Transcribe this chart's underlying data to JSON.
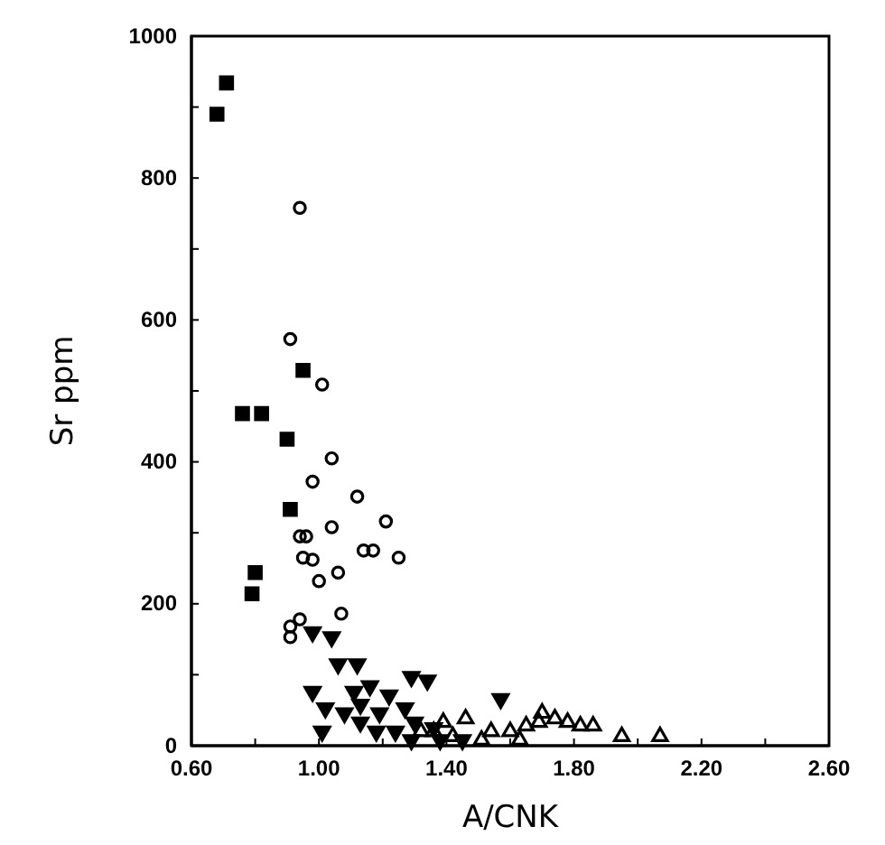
{
  "chart_data": {
    "type": "scatter",
    "xlabel": "A/CNK",
    "ylabel": "Sr ppm",
    "xlim": [
      0.6,
      2.6
    ],
    "xticks": [
      {
        "value": 0.6,
        "label": "0.60"
      },
      {
        "value": 0.8,
        "label": null
      },
      {
        "value": 1.0,
        "label": "1.00"
      },
      {
        "value": 1.2,
        "label": null
      },
      {
        "value": 1.4,
        "label": "1.40"
      },
      {
        "value": 1.6,
        "label": null
      },
      {
        "value": 1.8,
        "label": "1.80"
      },
      {
        "value": 2.0,
        "label": null
      },
      {
        "value": 2.2,
        "label": "2.20"
      },
      {
        "value": 2.4,
        "label": null
      },
      {
        "value": 2.6,
        "label": "2.60"
      }
    ],
    "ylim": [
      0,
      1000
    ],
    "yticks": [
      0,
      {
        "value": 100,
        "label": null
      },
      200,
      {
        "value": 300,
        "label": null
      },
      400,
      {
        "value": 500,
        "label": null
      },
      600,
      {
        "value": 700,
        "label": null
      },
      800,
      {
        "value": 900,
        "label": null
      },
      1000
    ],
    "grid": false,
    "series": [
      {
        "marker": "square",
        "color": "#000000",
        "x": [
          0.68,
          0.71,
          0.95,
          0.76,
          0.82,
          0.9,
          0.91,
          0.8,
          0.79
        ],
        "values": [
          890,
          934,
          529,
          468,
          468,
          432,
          333,
          244,
          214
        ]
      },
      {
        "marker": "circle",
        "color": "#000000",
        "x": [
          0.94,
          0.91,
          1.01,
          1.04,
          0.98,
          1.12,
          1.21,
          0.94,
          1.04,
          0.96,
          0.95,
          0.98,
          1.14,
          1.17,
          1.25,
          1.06,
          1.0,
          0.91,
          0.91,
          0.94,
          1.07
        ],
        "values": [
          758,
          573,
          509,
          405,
          372,
          351,
          316,
          295,
          308,
          295,
          265,
          262,
          275,
          275,
          265,
          244,
          232,
          153,
          168,
          178,
          186
        ]
      },
      {
        "marker": "triangle-down",
        "color": "#000000",
        "x": [
          0.98,
          1.04,
          1.06,
          1.12,
          0.98,
          1.01,
          1.29,
          1.34,
          1.57,
          1.27,
          1.11,
          1.13,
          1.16,
          1.19,
          1.08,
          1.22,
          1.02,
          1.13,
          1.18,
          1.24,
          1.3,
          1.36,
          1.38,
          1.29,
          1.45
        ],
        "values": [
          160,
          153,
          115,
          115,
          76,
          20,
          97,
          92,
          66,
          53,
          76,
          58,
          84,
          46,
          46,
          71,
          53,
          33,
          20,
          20,
          33,
          25,
          8,
          8,
          8
        ]
      },
      {
        "marker": "triangle",
        "color": "#000000",
        "x": [
          1.46,
          1.51,
          1.6,
          1.65,
          1.69,
          1.7,
          1.74,
          1.78,
          1.82,
          1.86,
          1.95,
          2.07,
          1.39,
          1.36,
          1.42,
          1.32,
          1.54,
          1.63
        ],
        "values": [
          38,
          8,
          20,
          28,
          33,
          46,
          38,
          33,
          28,
          28,
          13,
          13,
          33,
          20,
          13,
          20,
          20,
          8
        ]
      }
    ]
  }
}
